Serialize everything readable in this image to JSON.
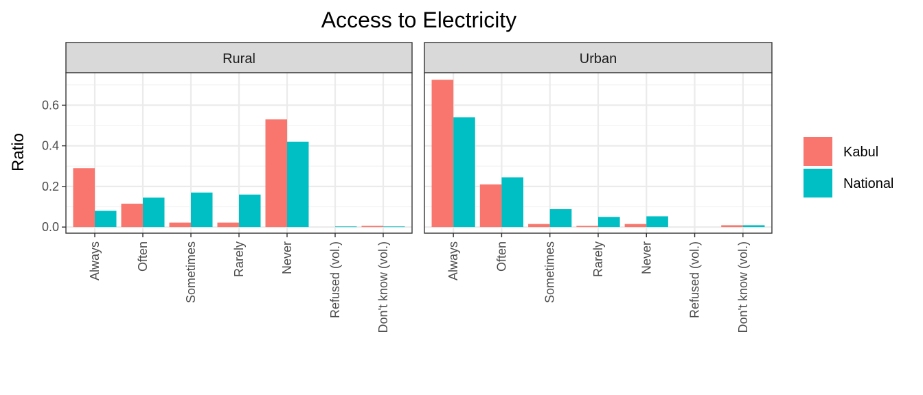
{
  "chart_data": {
    "type": "bar",
    "title": "Access to Electricity",
    "ylabel": "Ratio",
    "xlabel": "",
    "ylim": [
      -0.03,
      0.76
    ],
    "yticks": [
      0.0,
      0.2,
      0.4,
      0.6
    ],
    "ytick_labels": [
      "0.0",
      "0.2",
      "0.4",
      "0.6"
    ],
    "categories": [
      "Always",
      "Often",
      "Sometimes",
      "Rarely",
      "Never",
      "Refused (vol.)",
      "Don't know (vol.)"
    ],
    "legend_position": "right",
    "grid": true,
    "series_colors": {
      "Kabul": "#F8766D",
      "National": "#00BFC4"
    },
    "legend": [
      "Kabul",
      "National"
    ],
    "panels": [
      {
        "label": "Rural",
        "series": [
          {
            "name": "Kabul",
            "values": [
              0.29,
              0.115,
              0.022,
              0.022,
              0.53,
              0.0,
              0.006
            ]
          },
          {
            "name": "National",
            "values": [
              0.08,
              0.145,
              0.17,
              0.16,
              0.42,
              0.003,
              0.003
            ]
          }
        ]
      },
      {
        "label": "Urban",
        "series": [
          {
            "name": "Kabul",
            "values": [
              0.725,
              0.21,
              0.015,
              0.006,
              0.015,
              0.0,
              0.009
            ]
          },
          {
            "name": "National",
            "values": [
              0.54,
              0.245,
              0.088,
              0.05,
              0.053,
              0.0,
              0.009
            ]
          }
        ]
      }
    ]
  }
}
